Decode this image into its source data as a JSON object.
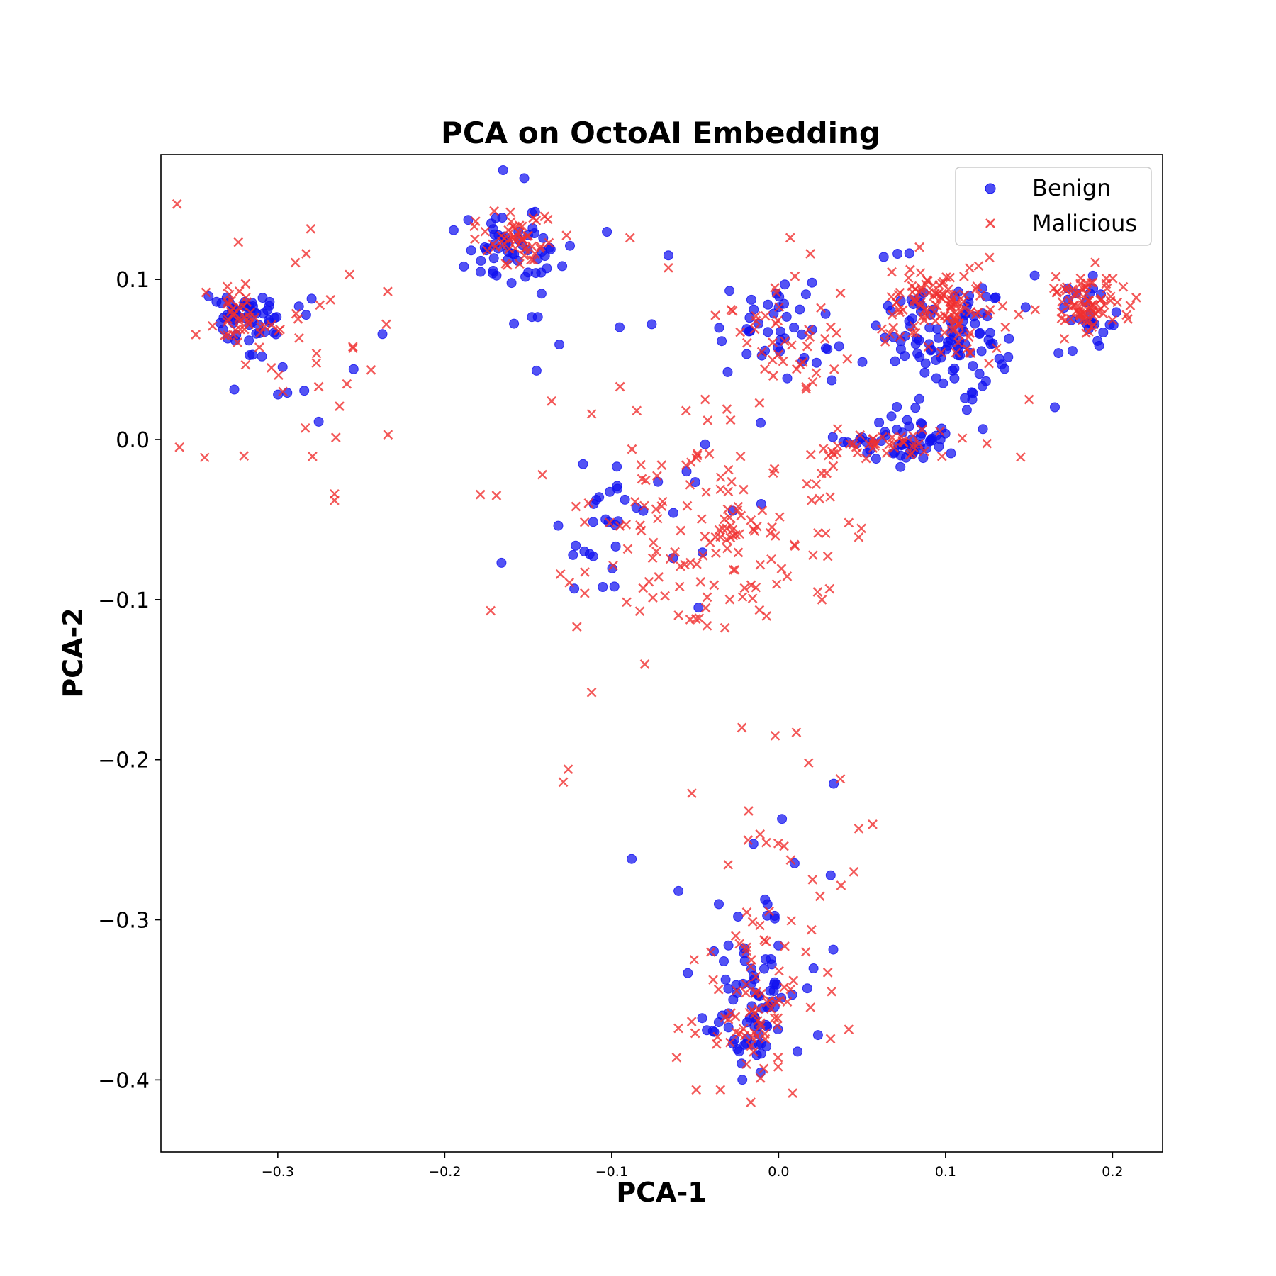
{
  "chart_data": {
    "type": "scatter",
    "title": "PCA on OctoAI Embedding",
    "xlabel": "PCA-1",
    "ylabel": "PCA-2",
    "xlim": [
      -0.37,
      0.23
    ],
    "ylim": [
      -0.445,
      0.178
    ],
    "xticks": [
      -0.3,
      -0.2,
      -0.1,
      0.0,
      0.1,
      0.2
    ],
    "xtick_labels": [
      "−0.3",
      "−0.2",
      "−0.1",
      "0.0",
      "0.1",
      "0.2"
    ],
    "yticks": [
      0.1,
      0.0,
      -0.1,
      -0.2,
      -0.3,
      -0.4
    ],
    "ytick_labels": [
      "0.1",
      "0.0",
      "−0.1",
      "−0.2",
      "−0.3",
      "−0.4"
    ],
    "grid": false,
    "legend": {
      "position": "top-right",
      "entries": [
        "Benign",
        "Malicious"
      ]
    },
    "series": [
      {
        "name": "Benign",
        "marker": "circle",
        "color": "#1010f0",
        "clusters": [
          {
            "center": [
              -0.322,
              0.076
            ],
            "spread": [
              0.01,
              0.008
            ],
            "count": 45
          },
          {
            "center": [
              -0.3,
              0.055
            ],
            "spread": [
              0.028,
              0.025
            ],
            "count": 18
          },
          {
            "center": [
              -0.16,
              0.12
            ],
            "spread": [
              0.013,
              0.012
            ],
            "count": 45
          },
          {
            "center": [
              -0.16,
              0.1
            ],
            "spread": [
              0.022,
              0.022
            ],
            "count": 16
          },
          {
            "center": [
              -0.002,
              0.068
            ],
            "spread": [
              0.02,
              0.014
            ],
            "count": 40
          },
          {
            "center": [
              0.105,
              0.065
            ],
            "spread": [
              0.025,
              0.02
            ],
            "count": 110
          },
          {
            "center": [
              0.072,
              -0.002
            ],
            "spread": [
              0.015,
              0.006
            ],
            "count": 55
          },
          {
            "center": [
              0.185,
              0.075
            ],
            "spread": [
              0.008,
              0.012
            ],
            "count": 25
          },
          {
            "center": [
              -0.1,
              -0.055
            ],
            "spread": [
              0.015,
              0.02
            ],
            "count": 28
          },
          {
            "center": [
              -0.025,
              -0.04
            ],
            "spread": [
              0.02,
              0.02
            ],
            "count": 8
          },
          {
            "center": [
              -0.015,
              -0.36
            ],
            "spread": [
              0.013,
              0.022
            ],
            "count": 75
          },
          {
            "center": [
              -0.005,
              -0.3
            ],
            "spread": [
              0.018,
              0.03
            ],
            "count": 12
          }
        ],
        "points": [
          [
            -0.166,
            -0.077
          ],
          [
            -0.088,
            -0.262
          ],
          [
            0.033,
            -0.215
          ],
          [
            -0.145,
            0.043
          ],
          [
            0.063,
            0.114
          ],
          [
            -0.066,
            0.115
          ],
          [
            -0.076,
            0.072
          ],
          [
            -0.125,
            0.121
          ],
          [
            -0.06,
            -0.282
          ],
          [
            -0.048,
            -0.105
          ],
          [
            -0.044,
            -0.003
          ],
          [
            0.002,
            -0.237
          ],
          [
            0.116,
            0.025
          ],
          [
            0.138,
            0.063
          ],
          [
            0.02,
            0.098
          ]
        ]
      },
      {
        "name": "Malicious",
        "marker": "x",
        "color": "#f03030",
        "clusters": [
          {
            "center": [
              -0.322,
              0.078
            ],
            "spread": [
              0.01,
              0.008
            ],
            "count": 40
          },
          {
            "center": [
              -0.29,
              0.05
            ],
            "spread": [
              0.03,
              0.03
            ],
            "count": 30
          },
          {
            "center": [
              -0.157,
              0.125
            ],
            "spread": [
              0.013,
              0.01
            ],
            "count": 50
          },
          {
            "center": [
              0.0,
              0.065
            ],
            "spread": [
              0.025,
              0.02
            ],
            "count": 45
          },
          {
            "center": [
              0.103,
              0.085
            ],
            "spread": [
              0.02,
              0.015
            ],
            "count": 120
          },
          {
            "center": [
              0.185,
              0.085
            ],
            "spread": [
              0.012,
              0.01
            ],
            "count": 80
          },
          {
            "center": [
              0.065,
              -0.004
            ],
            "spread": [
              0.02,
              0.005
            ],
            "count": 40
          },
          {
            "center": [
              -0.04,
              -0.06
            ],
            "spread": [
              0.04,
              0.03
            ],
            "count": 150
          },
          {
            "center": [
              -0.02,
              -0.36
            ],
            "spread": [
              0.015,
              0.02
            ],
            "count": 60
          },
          {
            "center": [
              0.005,
              -0.3
            ],
            "spread": [
              0.02,
              0.045
            ],
            "count": 35
          }
        ],
        "points": [
          [
            -0.129,
            -0.214
          ],
          [
            -0.126,
            -0.206
          ],
          [
            -0.112,
            -0.158
          ],
          [
            -0.052,
            -0.221
          ],
          [
            -0.022,
            -0.18
          ],
          [
            -0.002,
            -0.185
          ],
          [
            0.018,
            -0.202
          ],
          [
            0.037,
            -0.212
          ],
          [
            -0.169,
            -0.035
          ],
          [
            -0.136,
            0.024
          ],
          [
            -0.112,
            0.016
          ],
          [
            -0.095,
            0.033
          ],
          [
            -0.089,
            0.126
          ],
          [
            -0.085,
            0.018
          ],
          [
            -0.044,
            0.025
          ],
          [
            0.007,
            0.126
          ],
          [
            0.019,
            0.116
          ],
          [
            -0.266,
            -0.034
          ],
          [
            -0.266,
            -0.038
          ],
          [
            -0.234,
            0.003
          ],
          [
            -0.235,
            0.072
          ],
          [
            -0.283,
            0.116
          ],
          [
            -0.257,
            0.103
          ],
          [
            0.045,
            -0.27
          ],
          [
            0.048,
            -0.243
          ],
          [
            0.15,
            0.025
          ],
          [
            0.145,
            -0.011
          ],
          [
            0.042,
            -0.052
          ],
          [
            0.048,
            -0.061
          ],
          [
            -0.018,
            -0.232
          ]
        ]
      }
    ]
  }
}
